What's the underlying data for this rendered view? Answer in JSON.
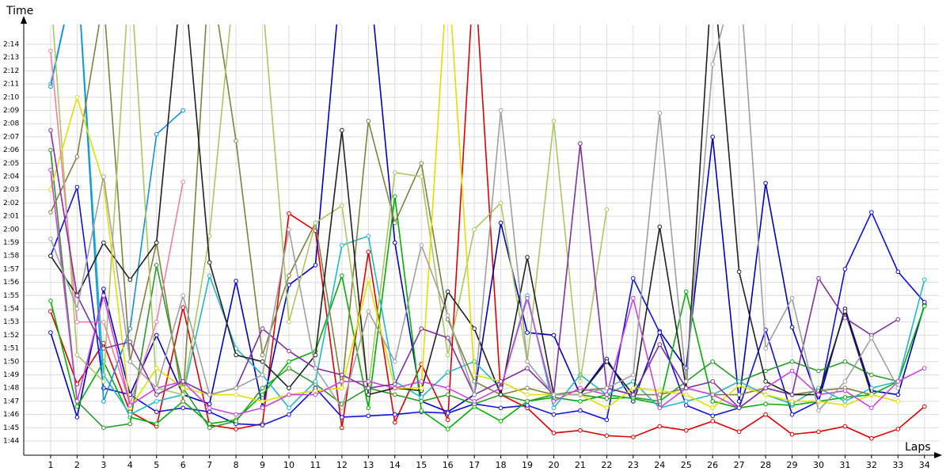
{
  "chart_data": {
    "type": "line",
    "y_label": "Time",
    "x_label": "Laps",
    "x": [
      1,
      2,
      3,
      4,
      5,
      6,
      7,
      8,
      9,
      10,
      11,
      12,
      13,
      14,
      15,
      16,
      17,
      18,
      19,
      20,
      21,
      22,
      23,
      24,
      25,
      26,
      27,
      28,
      29,
      30,
      31,
      32,
      33,
      34
    ],
    "xlim": [
      0,
      34.5
    ],
    "xticks": [
      1,
      2,
      3,
      4,
      5,
      6,
      7,
      8,
      9,
      10,
      11,
      12,
      13,
      14,
      15,
      16,
      17,
      18,
      19,
      20,
      21,
      22,
      23,
      24,
      25,
      26,
      27,
      28,
      29,
      30,
      31,
      32,
      33,
      34
    ],
    "ylim": [
      103,
      135.5
    ],
    "yticks": [
      {
        "value": 104,
        "label": "1:44"
      },
      {
        "value": 105,
        "label": "1:45"
      },
      {
        "value": 106,
        "label": "1:46"
      },
      {
        "value": 107,
        "label": "1:47"
      },
      {
        "value": 108,
        "label": "1:48"
      },
      {
        "value": 109,
        "label": "1:49"
      },
      {
        "value": 110,
        "label": "1:50"
      },
      {
        "value": 111,
        "label": "1:51"
      },
      {
        "value": 112,
        "label": "1:52"
      },
      {
        "value": 113,
        "label": "1:53"
      },
      {
        "value": 114,
        "label": "1:54"
      },
      {
        "value": 115,
        "label": "1:55"
      },
      {
        "value": 116,
        "label": "1:56"
      },
      {
        "value": 117,
        "label": "1:57"
      },
      {
        "value": 118,
        "label": "1:58"
      },
      {
        "value": 119,
        "label": "1:59"
      },
      {
        "value": 120,
        "label": "2:00"
      },
      {
        "value": 121,
        "label": "2:01"
      },
      {
        "value": 122,
        "label": "2:02"
      },
      {
        "value": 123,
        "label": "2:03"
      },
      {
        "value": 124,
        "label": "2:04"
      },
      {
        "value": 125,
        "label": "2:05"
      },
      {
        "value": 126,
        "label": "2:06"
      },
      {
        "value": 127,
        "label": "2:07"
      },
      {
        "value": 128,
        "label": "2:08"
      },
      {
        "value": 129,
        "label": "2:09"
      },
      {
        "value": 130,
        "label": "2:10"
      },
      {
        "value": 131,
        "label": "2:11"
      },
      {
        "value": 132,
        "label": "2:12"
      },
      {
        "value": 133,
        "label": "2:13"
      },
      {
        "value": 134,
        "label": "2:14"
      }
    ],
    "grid": true,
    "series": [
      {
        "color": "#e00000",
        "values": [
          113.8,
          108.3,
          111.4,
          106.2,
          105.1,
          114.1,
          105.2,
          104.9,
          105.3,
          121.2,
          119.9,
          105.0,
          118.3,
          105.4,
          109.8,
          105.6,
          140,
          107.5,
          106.5,
          104.6,
          104.8,
          104.4,
          104.3,
          105.1,
          104.8,
          105.5,
          104.7,
          106.0,
          104.5,
          104.7,
          105.1,
          104.2,
          104.9,
          106.6
        ]
      },
      {
        "color": "#0000c0",
        "values": [
          112.2,
          105.8,
          115.5,
          107.5,
          112.0,
          107.5,
          106.8,
          116.1,
          106.6,
          115.8,
          117.3,
          140,
          140,
          119.0,
          107.0,
          106.2,
          107.5,
          120.5,
          112.2,
          112.0,
          107.5,
          110.2,
          107.0,
          112.3,
          109.5,
          127.0,
          107.0,
          123.5,
          112.6,
          107.0,
          114.0,
          107.8,
          107.5,
          114.3
        ]
      },
      {
        "color": "#1010e0",
        "values": [
          118.0,
          123.2,
          108.0,
          107.5,
          106.2,
          106.5,
          106.2,
          105.3,
          105.2,
          106.0,
          108.0,
          105.8,
          105.9,
          106.0,
          106.2,
          106.1,
          106.8,
          106.5,
          106.7,
          106.0,
          106.3,
          105.6,
          116.3,
          112.2,
          106.7,
          105.9,
          106.5,
          112.4,
          106.0,
          107.0,
          117.0,
          121.3,
          116.8,
          114.5
        ]
      },
      {
        "color": "#00b000",
        "values": [
          114.6,
          106.6,
          110.0,
          105.8,
          105.3,
          107.0,
          105.3,
          105.6,
          107.5,
          110.0,
          110.8,
          116.5,
          106.5,
          122.5,
          106.3,
          104.9,
          106.6,
          105.5,
          107.0,
          107.3,
          107.0,
          107.5,
          107.2,
          106.8,
          115.3,
          107.0,
          106.5,
          106.8,
          106.7,
          107.0,
          107.3,
          107.5,
          108.5,
          114.2
        ]
      },
      {
        "color": "#2a9a2a",
        "values": [
          126.0,
          107.0,
          105.0,
          105.3,
          117.3,
          108.0,
          105.0,
          105.5,
          108.0,
          109.5,
          108.3,
          106.8,
          108.0,
          107.5,
          107.0,
          107.5,
          106.8,
          107.5,
          107.0,
          107.5,
          107.5,
          107.2,
          107.3,
          107.0,
          108.5,
          110.0,
          108.5,
          109.3,
          110.0,
          109.3,
          110.0,
          109.0,
          108.5,
          null
        ]
      },
      {
        "color": "#20b8c8",
        "values": [
          131.0,
          140,
          109.0,
          106.0,
          107.0,
          107.5,
          116.5,
          111.0,
          109.0,
          106.5,
          108.5,
          118.8,
          119.5,
          108.5,
          107.3,
          109.2,
          110.0,
          108.0,
          115.0,
          106.5,
          109.0,
          107.5,
          108.5,
          106.5,
          107.0,
          107.5,
          108.5,
          107.5,
          106.8,
          108.0,
          107.0,
          108.0,
          108.5,
          116.2
        ]
      },
      {
        "color": "#1090e0",
        "values": [
          130.8,
          140,
          107.0,
          112.5,
          127.2,
          129.0,
          null,
          null,
          null,
          null,
          null,
          null,
          null,
          null,
          null,
          null,
          null,
          null,
          null,
          null,
          null,
          null,
          null,
          null,
          null,
          null,
          null,
          null,
          null,
          null,
          null,
          null,
          null,
          null
        ]
      },
      {
        "color": "#808040",
        "values": [
          121.3,
          125.5,
          137.5,
          110.0,
          119.0,
          107.0,
          140,
          126.7,
          110.5,
          116.5,
          120.5,
          108.0,
          128.2,
          120.5,
          125.0,
          113.2,
          108.5,
          107.5,
          108.0,
          107.5,
          107.8,
          108.0,
          107.5,
          107.5,
          108.0,
          107.5,
          107.5,
          108.0,
          107.5,
          107.8,
          108.0,
          107.5,
          null,
          null
        ]
      },
      {
        "color": "#a8c860",
        "values": [
          138.0,
          110.5,
          108.5,
          140,
          108.0,
          107.5,
          119.5,
          140,
          137.5,
          113.0,
          120.5,
          121.8,
          108.0,
          124.3,
          124.0,
          110.5,
          120.0,
          122.0,
          110.0,
          128.2,
          108.5,
          121.5,
          null,
          null,
          null,
          null,
          null,
          null,
          null,
          null,
          null,
          null,
          null,
          null
        ]
      },
      {
        "color": "#202020",
        "values": [
          118.0,
          115.0,
          119.0,
          116.2,
          119.0,
          140,
          117.5,
          110.5,
          110.0,
          108.0,
          110.5,
          127.5,
          107.5,
          108.0,
          107.8,
          115.3,
          112.5,
          107.5,
          117.9,
          107.5,
          107.5,
          110.0,
          107.5,
          120.2,
          108.0,
          140,
          116.8,
          108.5,
          107.5,
          107.5,
          113.8,
          107.5,
          null,
          null
        ]
      },
      {
        "color": "#e0e000",
        "values": [
          123.0,
          130.0,
          123.5,
          106.5,
          109.5,
          108.0,
          107.5,
          107.5,
          107.0,
          107.5,
          107.8,
          108.0,
          116.2,
          108.0,
          108.0,
          140,
          109.0,
          108.5,
          107.5,
          107.5,
          107.5,
          106.5,
          108.0,
          107.8,
          107.5,
          106.5,
          108.2,
          107.5,
          107.0,
          107.0,
          106.7,
          107.5,
          107.0,
          null
        ]
      },
      {
        "color": "#f080a0",
        "values": [
          133.5,
          113.0,
          113.0,
          106.8,
          113.0,
          123.6,
          null,
          null,
          null,
          null,
          null,
          null,
          null,
          null,
          null,
          null,
          null,
          null,
          null,
          null,
          null,
          null,
          null,
          null,
          null,
          null,
          null,
          null,
          null,
          null,
          null,
          null,
          null,
          null
        ]
      },
      {
        "color": "#d040e0",
        "values": [
          124.5,
          107.0,
          115.0,
          106.7,
          108.0,
          108.5,
          106.5,
          106.0,
          106.5,
          107.5,
          107.5,
          108.5,
          108.5,
          108.0,
          108.5,
          108.0,
          107.0,
          108.0,
          114.8,
          107.0,
          108.0,
          107.5,
          114.8,
          106.5,
          108.0,
          107.5,
          106.5,
          108.0,
          109.3,
          107.5,
          107.8,
          106.5,
          108.5,
          109.5
        ]
      },
      {
        "color": "#8030a0",
        "values": [
          127.5,
          115.0,
          111.0,
          111.5,
          107.5,
          108.5,
          107.5,
          108.0,
          112.5,
          110.8,
          109.5,
          109.0,
          108.0,
          108.3,
          112.5,
          111.8,
          107.5,
          108.5,
          109.5,
          107.5,
          126.5,
          108.0,
          107.5,
          111.3,
          108.0,
          108.5,
          106.5,
          108.0,
          107.5,
          116.3,
          113.3,
          112.0,
          113.2,
          null
        ]
      },
      {
        "color": "#a0a0a0",
        "values": [
          119.3,
          114.0,
          124.0,
          110.0,
          108.0,
          115.0,
          107.5,
          108.0,
          109.0,
          120.0,
          109.5,
          106.5,
          113.8,
          110.0,
          118.8,
          113.5,
          107.5,
          129.0,
          110.0,
          107.5,
          107.5,
          108.0,
          109.0,
          128.8,
          108.5,
          132.5,
          140,
          111.0,
          114.8,
          106.3,
          108.5,
          111.8,
          108.0,
          null
        ]
      }
    ]
  }
}
